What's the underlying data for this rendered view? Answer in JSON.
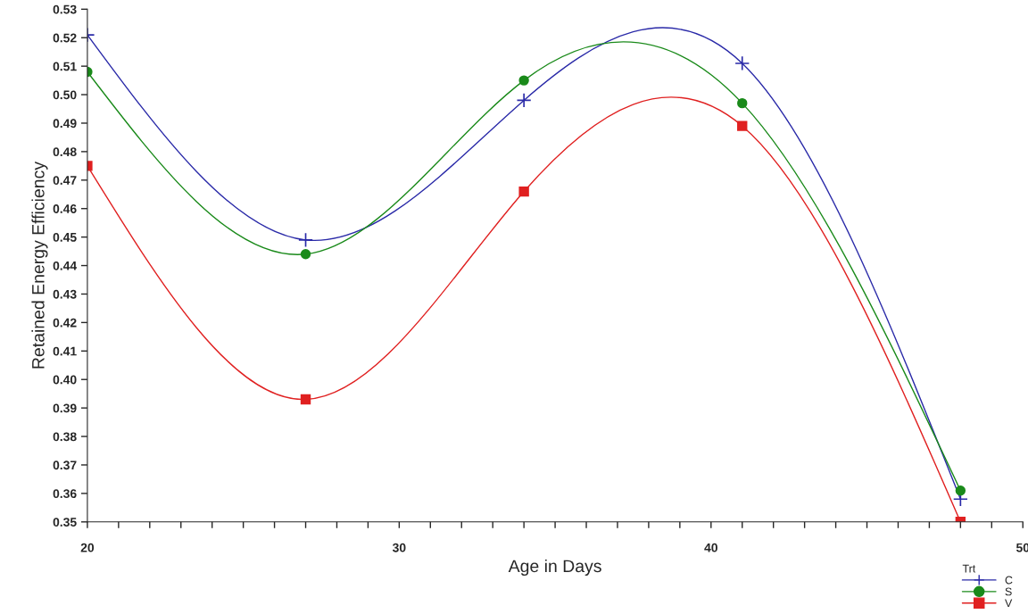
{
  "chart_data": {
    "type": "line",
    "xlabel": "Age in Days",
    "ylabel": "Retained Energy Efficiency",
    "legend_title": "Trt",
    "legend": "bottom right",
    "grid": false,
    "x": [
      20,
      27,
      34,
      41,
      48
    ],
    "xlim": [
      20,
      50
    ],
    "xticks": [
      20,
      {
        "value": 21,
        "label": null
      },
      {
        "value": 22,
        "label": null
      },
      {
        "value": 23,
        "label": null
      },
      {
        "value": 24,
        "label": null
      },
      {
        "value": 25,
        "label": null
      },
      {
        "value": 26,
        "label": null
      },
      {
        "value": 27,
        "label": null
      },
      {
        "value": 28,
        "label": null
      },
      {
        "value": 29,
        "label": null
      },
      30,
      {
        "value": 31,
        "label": null
      },
      {
        "value": 32,
        "label": null
      },
      {
        "value": 33,
        "label": null
      },
      {
        "value": 34,
        "label": null
      },
      {
        "value": 35,
        "label": null
      },
      {
        "value": 36,
        "label": null
      },
      {
        "value": 37,
        "label": null
      },
      {
        "value": 38,
        "label": null
      },
      {
        "value": 39,
        "label": null
      },
      40,
      {
        "value": 41,
        "label": null
      },
      {
        "value": 42,
        "label": null
      },
      {
        "value": 43,
        "label": null
      },
      {
        "value": 44,
        "label": null
      },
      {
        "value": 45,
        "label": null
      },
      {
        "value": 46,
        "label": null
      },
      {
        "value": 47,
        "label": null
      },
      {
        "value": 48,
        "label": null
      },
      {
        "value": 49,
        "label": null
      },
      50
    ],
    "ylim": [
      0.35,
      0.53
    ],
    "yticks": [
      {
        "value": 0.35,
        "label": "0.35"
      },
      {
        "value": 0.36,
        "label": "0.36"
      },
      {
        "value": 0.37,
        "label": "0.37"
      },
      {
        "value": 0.38,
        "label": "0.38"
      },
      {
        "value": 0.39,
        "label": "0.39"
      },
      {
        "value": 0.4,
        "label": "0.40"
      },
      {
        "value": 0.41,
        "label": "0.41"
      },
      {
        "value": 0.42,
        "label": "0.42"
      },
      {
        "value": 0.43,
        "label": "0.43"
      },
      {
        "value": 0.44,
        "label": "0.44"
      },
      {
        "value": 0.45,
        "label": "0.45"
      },
      {
        "value": 0.46,
        "label": "0.46"
      },
      {
        "value": 0.47,
        "label": "0.47"
      },
      {
        "value": 0.48,
        "label": "0.48"
      },
      {
        "value": 0.49,
        "label": "0.49"
      },
      {
        "value": 0.5,
        "label": "0.50"
      },
      {
        "value": 0.51,
        "label": "0.51"
      },
      {
        "value": 0.52,
        "label": "0.52"
      },
      {
        "value": 0.53,
        "label": "0.53"
      }
    ],
    "series": [
      {
        "name": "C",
        "color": "#2a2aa8",
        "marker": "cross",
        "values": [
          0.521,
          0.449,
          0.498,
          0.511,
          0.358
        ]
      },
      {
        "name": "S",
        "color": "#1a8a1a",
        "marker": "circle",
        "values": [
          0.508,
          0.444,
          0.505,
          0.497,
          0.361
        ]
      },
      {
        "name": "V",
        "color": "#e02020",
        "marker": "square",
        "values": [
          0.475,
          0.393,
          0.466,
          0.489,
          0.35
        ]
      }
    ]
  }
}
